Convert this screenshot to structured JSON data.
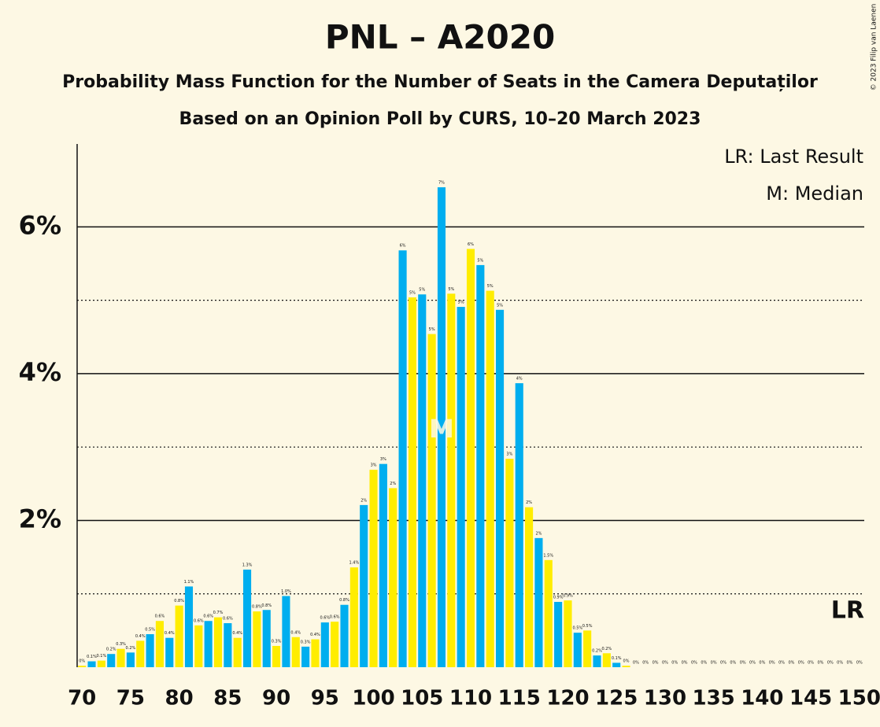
{
  "chart_data": {
    "type": "bar",
    "title": "PNL – A2020",
    "subtitle": "Probability Mass Function for the Number of Seats in the Camera Deputaților",
    "subtitle2": "Based on an Opinion Poll by CURS, 10–20 March 2023",
    "copyright": "© 2023 Filip van Laenen",
    "x": [
      70,
      71,
      72,
      73,
      74,
      75,
      76,
      77,
      78,
      79,
      80,
      81,
      82,
      83,
      84,
      85,
      86,
      87,
      88,
      89,
      90,
      91,
      92,
      93,
      94,
      95,
      96,
      97,
      98,
      99,
      100,
      101,
      102,
      103,
      104,
      105,
      106,
      107,
      108,
      109,
      110,
      111,
      112,
      113,
      114,
      115,
      116,
      117,
      118,
      119,
      120,
      121,
      122,
      123,
      124,
      125,
      126,
      127,
      128,
      129,
      130,
      131,
      132,
      133,
      134,
      135,
      136,
      137,
      138,
      139,
      140,
      141,
      142,
      143,
      144,
      145,
      146,
      147,
      148,
      149,
      150
    ],
    "values": [
      0.02,
      0.08,
      0.09,
      0.18,
      0.25,
      0.2,
      0.36,
      0.45,
      0.63,
      0.4,
      0.84,
      1.1,
      0.57,
      0.63,
      0.68,
      0.6,
      0.4,
      1.33,
      0.76,
      0.78,
      0.29,
      0.97,
      0.41,
      0.28,
      0.38,
      0.61,
      0.62,
      0.85,
      1.36,
      2.21,
      2.69,
      2.77,
      2.44,
      5.68,
      5.04,
      5.08,
      4.54,
      6.54,
      5.09,
      4.91,
      5.7,
      5.48,
      5.13,
      4.87,
      2.84,
      3.87,
      2.18,
      1.76,
      1.46,
      0.89,
      0.91,
      0.47,
      0.5,
      0.16,
      0.19,
      0.06,
      0.02,
      0,
      0,
      0,
      0,
      0,
      0,
      0,
      0,
      0,
      0,
      0,
      0,
      0,
      0,
      0,
      0,
      0,
      0,
      0,
      0,
      0,
      0,
      0,
      0
    ],
    "value_labels": [
      "0%",
      "0.1%",
      "0.1%",
      "0.2%",
      "0.3%",
      "0.2%",
      "0.4%",
      "0.5%",
      "0.6%",
      "0.4%",
      "0.8%",
      "1.1%",
      "0.6%",
      "0.6%",
      "0.7%",
      "0.6%",
      "0.4%",
      "1.3%",
      "0.8%",
      "0.8%",
      "0.3%",
      "1.0%",
      "0.4%",
      "0.3%",
      "0.4%",
      "0.6%",
      "0.6%",
      "0.8%",
      "1.4%",
      "2%",
      "3%",
      "3%",
      "2%",
      "6%",
      "5%",
      "5%",
      "5%",
      "7%",
      "5%",
      "5%",
      "6%",
      "5%",
      "5%",
      "5%",
      "3%",
      "4%",
      "2%",
      "2%",
      "1.5%",
      "0.9%",
      "0.9%",
      "0.5%",
      "0.5%",
      "0.2%",
      "0.2%",
      "0.1%",
      "0%",
      "0%",
      "0%",
      "0%",
      "0%",
      "0%",
      "0%",
      "0%",
      "0%",
      "0%",
      "0%",
      "0%",
      "0%",
      "0%",
      "0%",
      "0%",
      "0%",
      "0%",
      "0%",
      "0%",
      "0%",
      "0%",
      "0%",
      "0%",
      "0%"
    ],
    "colors": [
      "#ffed00",
      "#00aeef"
    ],
    "xlim": [
      69.5,
      150.5
    ],
    "xticks": [
      70,
      75,
      80,
      85,
      90,
      95,
      100,
      105,
      110,
      115,
      120,
      125,
      130,
      135,
      140,
      145,
      150
    ],
    "ylim": [
      0,
      7.13
    ],
    "yticks": [
      {
        "value": 2,
        "label": "2%"
      },
      {
        "value": 4,
        "label": "4%"
      },
      {
        "value": 6,
        "label": "6%"
      }
    ],
    "minor_yticks": [
      1,
      3,
      5
    ],
    "grid": true,
    "legend": [
      "LR: Last Result",
      "M: Median"
    ],
    "median": {
      "x": 107,
      "label": "M"
    },
    "last_result": {
      "x": 150,
      "label": "LR"
    }
  }
}
